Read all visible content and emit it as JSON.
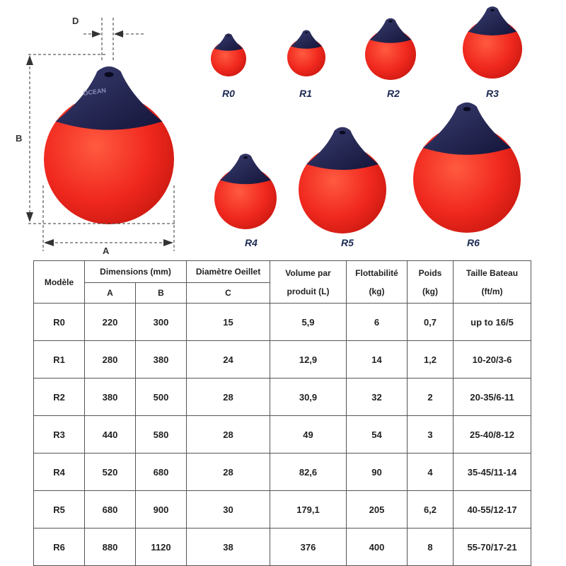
{
  "diagram": {
    "dimension_labels": {
      "a": "A",
      "b": "B",
      "d": "D"
    },
    "buoys": [
      {
        "id": "R0",
        "label": "R0"
      },
      {
        "id": "R1",
        "label": "R1"
      },
      {
        "id": "R2",
        "label": "R2"
      },
      {
        "id": "R3",
        "label": "R3"
      },
      {
        "id": "R4",
        "label": "R4"
      },
      {
        "id": "R5",
        "label": "R5"
      },
      {
        "id": "R6",
        "label": "R6"
      }
    ],
    "brand": "OCEAN",
    "colors": {
      "buoy_body": "#f0281e",
      "buoy_cap": "#1e1f4a",
      "label": "#1c2a52"
    }
  },
  "table": {
    "headers": {
      "model": "Modèle",
      "dimensions": "Dimensions (mm)",
      "dim_a": "A",
      "dim_b": "B",
      "eyelet": "Diamètre Oeillet",
      "eyelet_c": "C",
      "volume_line1": "Volume par",
      "volume_line2": "produit (L)",
      "buoyancy_line1": "Flottabilité",
      "buoyancy_line2": "(kg)",
      "weight_line1": "Poids",
      "weight_line2": "(kg)",
      "boat_line1": "Taille Bateau",
      "boat_line2": "(ft/m)"
    },
    "rows": [
      {
        "model": "R0",
        "a": "220",
        "b": "300",
        "c": "15",
        "volume": "5,9",
        "buoyancy": "6",
        "weight": "0,7",
        "boat": "up to 16/5"
      },
      {
        "model": "R1",
        "a": "280",
        "b": "380",
        "c": "24",
        "volume": "12,9",
        "buoyancy": "14",
        "weight": "1,2",
        "boat": "10-20/3-6"
      },
      {
        "model": "R2",
        "a": "380",
        "b": "500",
        "c": "28",
        "volume": "30,9",
        "buoyancy": "32",
        "weight": "2",
        "boat": "20-35/6-11"
      },
      {
        "model": "R3",
        "a": "440",
        "b": "580",
        "c": "28",
        "volume": "49",
        "buoyancy": "54",
        "weight": "3",
        "boat": "25-40/8-12"
      },
      {
        "model": "R4",
        "a": "520",
        "b": "680",
        "c": "28",
        "volume": "82,6",
        "buoyancy": "90",
        "weight": "4",
        "boat": "35-45/11-14"
      },
      {
        "model": "R5",
        "a": "680",
        "b": "900",
        "c": "30",
        "volume": "179,1",
        "buoyancy": "205",
        "weight": "6,2",
        "boat": "40-55/12-17"
      },
      {
        "model": "R6",
        "a": "880",
        "b": "1120",
        "c": "38",
        "volume": "376",
        "buoyancy": "400",
        "weight": "8",
        "boat": "55-70/17-21"
      }
    ]
  }
}
